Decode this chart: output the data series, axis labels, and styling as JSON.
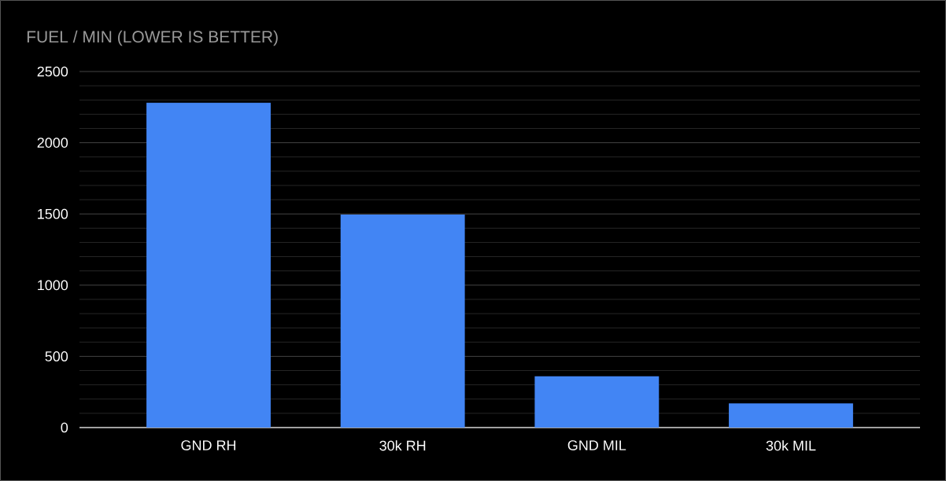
{
  "chart_data": {
    "type": "bar",
    "title": "FUEL / MIN (LOWER IS BETTER)",
    "categories": [
      "GND RH",
      "30k RH",
      "GND MIL",
      "30k MIL"
    ],
    "values": [
      2280,
      1495,
      360,
      170
    ],
    "color": "#4285f4",
    "ylim": [
      0,
      2500
    ],
    "yticks": [
      0,
      500,
      1000,
      1500,
      2000,
      2500
    ],
    "grid": "y"
  }
}
